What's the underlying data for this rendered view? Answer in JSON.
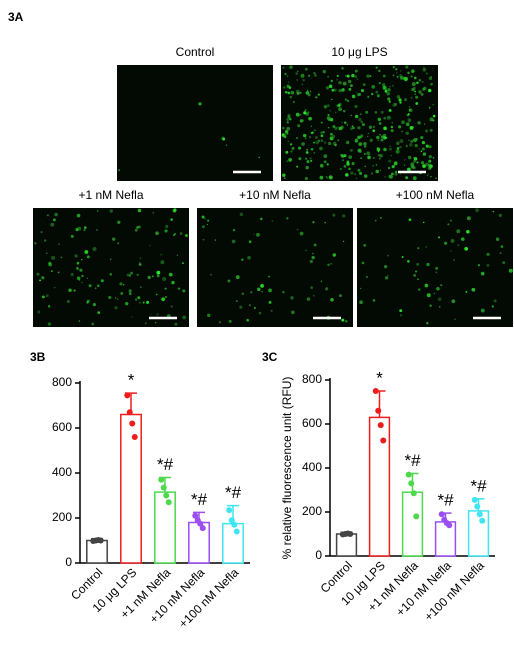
{
  "figure": {
    "panel_label": "3A",
    "images": [
      "Control",
      "10 μg LPS",
      "+1 nM Nefla",
      "+10 nM Nefla",
      "+100 nM Nefla"
    ]
  },
  "chart_data": [
    {
      "type": "bar",
      "panel_label": "3B",
      "categories": [
        "Control",
        "10 μg LPS",
        "+1 nM Nefla",
        "+10 nM Nefla",
        "+100 nM Nefla"
      ],
      "values": [
        100,
        660,
        315,
        180,
        175
      ],
      "errors": [
        8,
        95,
        65,
        45,
        80
      ],
      "points": [
        [
          98,
          100,
          102,
          100
        ],
        [
          745,
          670,
          620,
          560
        ],
        [
          370,
          335,
          300,
          270
        ],
        [
          210,
          190,
          175,
          155
        ],
        [
          235,
          190,
          170,
          140
        ]
      ],
      "annotations": [
        null,
        "*",
        "*#",
        "*#",
        "*#"
      ],
      "colors": [
        "#444444",
        "#ee1c1c",
        "#4cd94c",
        "#9b4ff0",
        "#3fe6f2"
      ],
      "ylim": [
        0,
        800
      ],
      "yticks": [
        0,
        200,
        400,
        600,
        800
      ]
    },
    {
      "type": "bar",
      "panel_label": "3C",
      "ylabel": "% relative fluorescence unit (RFU)",
      "categories": [
        "Control",
        "10 μg LPS",
        "+1 nM Nefla",
        "+10 nM Nefla",
        "+100 nM Nefla"
      ],
      "values": [
        100,
        630,
        290,
        155,
        205
      ],
      "errors": [
        8,
        120,
        85,
        40,
        55
      ],
      "points": [
        [
          98,
          100,
          102,
          100
        ],
        [
          750,
          660,
          595,
          525
        ],
        [
          370,
          330,
          285,
          180
        ],
        [
          190,
          165,
          150,
          140
        ],
        [
          255,
          225,
          190,
          160
        ]
      ],
      "annotations": [
        null,
        "*",
        "*#",
        "*#",
        "*#"
      ],
      "colors": [
        "#444444",
        "#ee1c1c",
        "#4cd94c",
        "#9b4ff0",
        "#3fe6f2"
      ],
      "ylim": [
        0,
        800
      ],
      "yticks": [
        0,
        200,
        400,
        600,
        800
      ]
    }
  ]
}
